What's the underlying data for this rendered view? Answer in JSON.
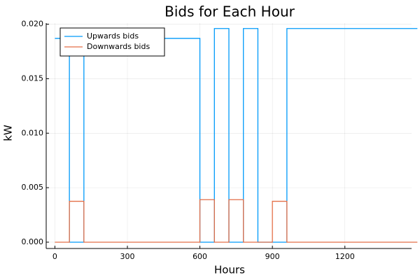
{
  "chart_data": {
    "type": "line",
    "title": "Bids for Each Hour",
    "xlabel": "Hours",
    "ylabel": "kW",
    "xlim": [
      -36,
      1476
    ],
    "ylim": [
      -0.00058,
      0.0201
    ],
    "xticks": [
      0,
      300,
      600,
      900,
      1200
    ],
    "xtick_labels": [
      "0",
      "300",
      "600",
      "900",
      "1200"
    ],
    "yticks": [
      0.0,
      0.005,
      0.01,
      0.015,
      0.02
    ],
    "ytick_labels": [
      "0.000",
      "0.005",
      "0.010",
      "0.015",
      "0.020"
    ],
    "grid": true,
    "legend_position": "top-left",
    "step": "post",
    "series": [
      {
        "name": "Upwards bids",
        "color": "#009AFA",
        "x": [
          0,
          60,
          120,
          180,
          240,
          300,
          360,
          420,
          480,
          540,
          600,
          660,
          720,
          780,
          840,
          900,
          960,
          1020,
          1080,
          1140,
          1200,
          1260,
          1320,
          1380,
          1440
        ],
        "y": [
          0.0187,
          0.0,
          0.0187,
          0.0187,
          0.0187,
          0.0187,
          0.0187,
          0.0187,
          0.0187,
          0.0187,
          0.0,
          0.0196,
          0.0,
          0.0196,
          0.0,
          0.0,
          0.0196,
          0.0196,
          0.0196,
          0.0196,
          0.0196,
          0.0196,
          0.0196,
          0.0196,
          0.0196
        ]
      },
      {
        "name": "Downwards bids",
        "color": "#E36F47",
        "x": [
          0,
          60,
          120,
          180,
          240,
          300,
          360,
          420,
          480,
          540,
          600,
          660,
          720,
          780,
          840,
          900,
          960,
          1020,
          1080,
          1140,
          1200,
          1260,
          1320,
          1380,
          1440
        ],
        "y": [
          0.0,
          0.00375,
          0.0,
          0.0,
          0.0,
          0.0,
          0.0,
          0.0,
          0.0,
          0.0,
          0.0039,
          0.0,
          0.0039,
          0.0,
          0.0,
          0.00375,
          0.0,
          0.0,
          0.0,
          0.0,
          0.0,
          0.0,
          0.0,
          0.0,
          0.0
        ]
      }
    ]
  }
}
